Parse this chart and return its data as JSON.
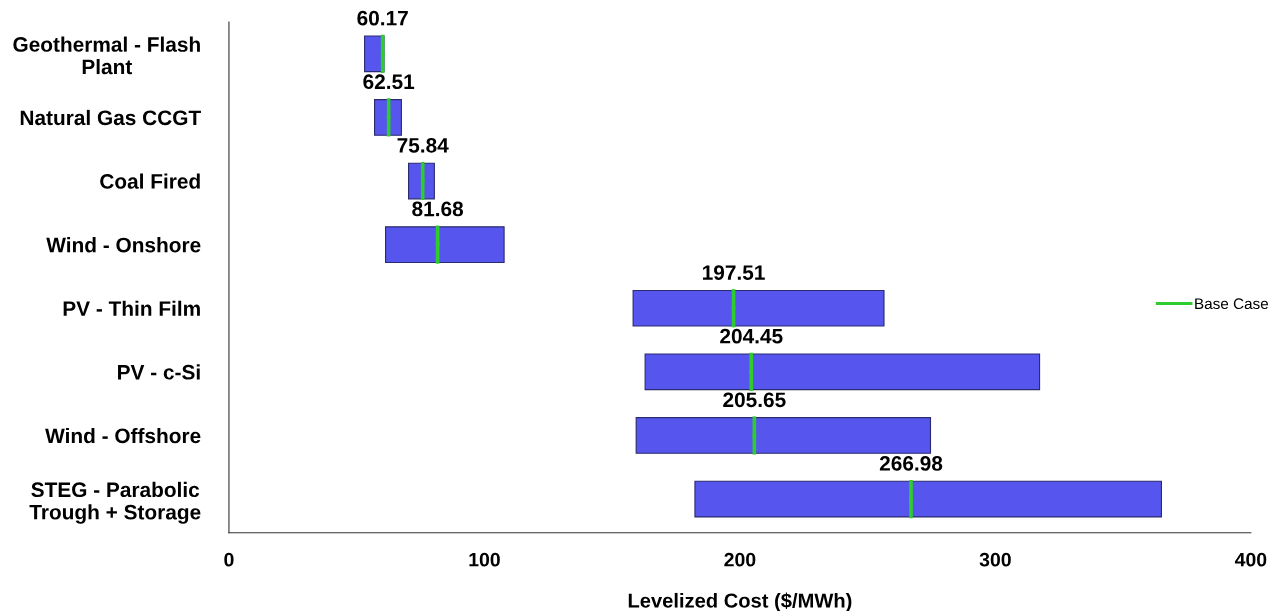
{
  "chart_data": {
    "type": "bar",
    "orientation": "horizontal",
    "xlabel": "Levelized Cost ($/MWh)",
    "categories": [
      "Geothermal - Flash\nPlant",
      "Natural Gas CCGT",
      "Coal Fired",
      "Wind - Onshore",
      "PV - Thin Film",
      "PV - c-Si",
      "Wind - Offshore",
      "STEG - Parabolic\nTrough + Storage"
    ],
    "series": [
      {
        "type": "bar",
        "color": "#5656ee",
        "base": [
          53.1,
          57.0,
          70.3,
          61.3,
          158.2,
          162.9,
          159.4,
          182.4
        ],
        "values": [
          7.6,
          10.5,
          10.1,
          46.4,
          98.2,
          154.4,
          115.2,
          182.6
        ]
      },
      {
        "type": "scatter",
        "name": "Base Case",
        "color": "#2ecc2e",
        "values": [
          60.17,
          62.51,
          75.84,
          81.68,
          197.51,
          204.45,
          205.65,
          266.98
        ],
        "value_labels": [
          "60.17",
          "62.51",
          "75.84",
          "81.68",
          "197.51",
          "204.45",
          "205.65",
          "266.98"
        ]
      }
    ],
    "xlim": [
      0,
      400
    ],
    "xticks": [
      0,
      100,
      200,
      300,
      400
    ],
    "grid": false,
    "legend": "right"
  }
}
